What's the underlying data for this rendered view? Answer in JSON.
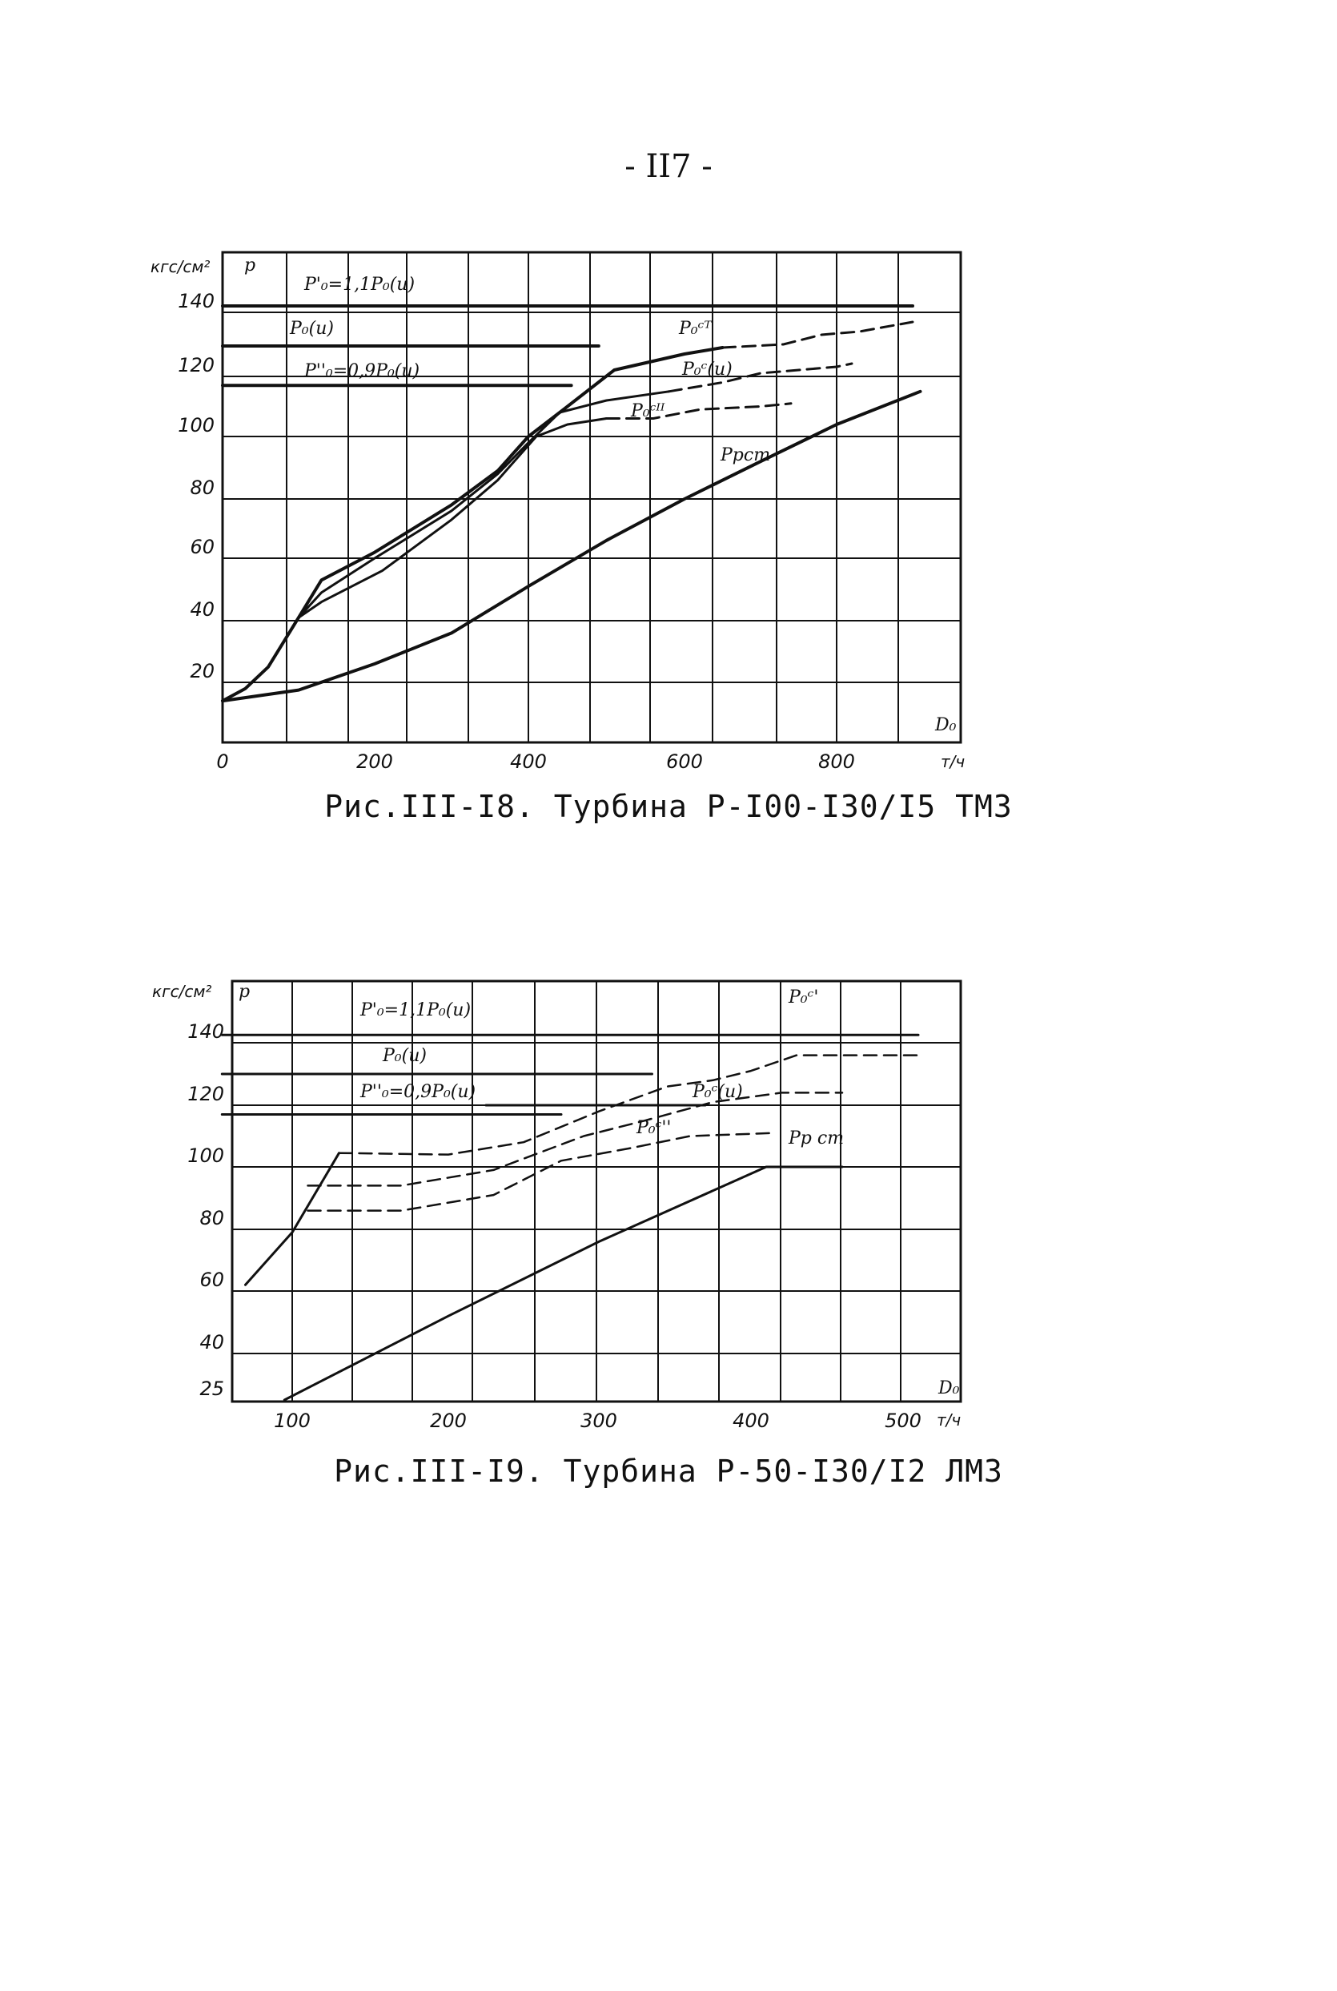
{
  "page_number": "- II7 -",
  "chart_data": [
    {
      "id": "fig1",
      "type": "line",
      "caption": "Рис.III-I8. Турбина Р-I00-I30/I5 ТМЗ",
      "ylabel": "p",
      "yunit": "кгс/см²",
      "xlabel": "D₀",
      "xunit": "т/ч",
      "xlim": [
        0,
        940
      ],
      "ylim": [
        0,
        160
      ],
      "xticks": [
        0,
        200,
        400,
        600,
        800
      ],
      "yticks": [
        20,
        40,
        60,
        80,
        100,
        120,
        140
      ],
      "grid": true,
      "series": [
        {
          "name": "P'₀=1,1P₀(u)",
          "style": "solid",
          "points": [
            [
              0,
              142
            ],
            [
              900,
              142
            ]
          ]
        },
        {
          "name": "P₀(u)",
          "style": "solid",
          "points": [
            [
              0,
              129.5
            ],
            [
              490,
              129.5
            ]
          ]
        },
        {
          "name": "P''₀=0,9P₀(u)",
          "style": "solid",
          "points": [
            [
              0,
              117
            ],
            [
              455,
              117
            ]
          ]
        },
        {
          "name": "P₀ᶜᵀ",
          "style": "solid",
          "points": [
            [
              0,
              14
            ],
            [
              30,
              18
            ],
            [
              60,
              25
            ],
            [
              100,
              41
            ],
            [
              130,
              53
            ],
            [
              200,
              62
            ],
            [
              300,
              78
            ],
            [
              360,
              89
            ],
            [
              400,
              100
            ],
            [
              450,
              110
            ],
            [
              510,
              122
            ],
            [
              600,
              127
            ],
            [
              650,
              129
            ]
          ]
        },
        {
          "name": "P₀ᶜᵀ",
          "style": "dashed",
          "points": [
            [
              650,
              129
            ],
            [
              730,
              130
            ],
            [
              780,
              133
            ],
            [
              830,
              134
            ],
            [
              900,
              137
            ]
          ]
        },
        {
          "name": "P₀ᶜ(u)",
          "style": "solid",
          "points": [
            [
              100,
              41
            ],
            [
              130,
              49
            ],
            [
              200,
              60
            ],
            [
              300,
              76
            ],
            [
              360,
              88
            ],
            [
              400,
              98
            ],
            [
              440,
              108
            ],
            [
              500,
              112
            ],
            [
              580,
              115
            ]
          ]
        },
        {
          "name": "P₀ᶜ(u)",
          "style": "dashed",
          "points": [
            [
              580,
              115
            ],
            [
              650,
              118
            ],
            [
              700,
              121
            ],
            [
              800,
              123
            ],
            [
              820,
              124
            ]
          ]
        },
        {
          "name": "P₀ᶜᴵᴵ",
          "style": "solid",
          "points": [
            [
              100,
              41
            ],
            [
              130,
              46
            ],
            [
              210,
              56
            ],
            [
              300,
              73
            ],
            [
              360,
              86
            ],
            [
              410,
              100
            ],
            [
              450,
              104
            ],
            [
              500,
              106
            ]
          ]
        },
        {
          "name": "P₀ᶜᴵᴵ",
          "style": "dashed",
          "points": [
            [
              500,
              106
            ],
            [
              560,
              106
            ],
            [
              620,
              109
            ],
            [
              700,
              110
            ],
            [
              740,
              111
            ]
          ]
        },
        {
          "name": "Pрст",
          "style": "solid",
          "points": [
            [
              0,
              14
            ],
            [
              100,
              17.5
            ],
            [
              200,
              26
            ],
            [
              300,
              36
            ],
            [
              400,
              51
            ],
            [
              500,
              66
            ],
            [
              600,
              80
            ],
            [
              700,
              92
            ],
            [
              800,
              104
            ],
            [
              910,
              115
            ]
          ]
        }
      ],
      "annotations": [
        "P'₀=1,1P₀(u)",
        "P₀(u)",
        "P''₀=0,9P₀(u)",
        "P₀ᶜᵀ",
        "P₀ᶜ(u)",
        "P₀ᶜᴵᴵ",
        "Pрст"
      ]
    },
    {
      "id": "fig2",
      "type": "line",
      "caption": "Рис.III-I9. Турбина Р-50-I30/I2 ЛМЗ",
      "ylabel": "p",
      "yunit": "кгс/см²",
      "xlabel": "D₀",
      "xunit": "т/ч",
      "xlim": [
        55,
        550
      ],
      "ylim": [
        25,
        160
      ],
      "xticks": [
        100,
        200,
        300,
        400,
        500
      ],
      "yticks": [
        25,
        40,
        60,
        80,
        100,
        120,
        140
      ],
      "grid": true,
      "series": [
        {
          "name": "P'₀=1,1P₀(u)",
          "style": "solid",
          "points": [
            [
              55,
              142.5
            ],
            [
              510,
              142.5
            ]
          ]
        },
        {
          "name": "P₀(u)",
          "style": "solid",
          "points": [
            [
              55,
              130
            ],
            [
              335,
              130
            ]
          ]
        },
        {
          "name": "P''₀=0,9P₀(u)",
          "style": "solid",
          "points": [
            [
              55,
              117
            ],
            [
              275,
              117
            ]
          ]
        },
        {
          "name": "P₀(u) cont.",
          "style": "solid",
          "points": [
            [
              225,
              120
            ],
            [
              370,
              120
            ]
          ]
        },
        {
          "name": "P₀ᶜᵀ",
          "style": "solid",
          "points": [
            [
              70,
              62
            ],
            [
              100,
              79
            ],
            [
              130,
              104.5
            ]
          ]
        },
        {
          "name": "P₀ᶜᵀ",
          "style": "dashed",
          "points": [
            [
              130,
              104.5
            ],
            [
              200,
              104
            ],
            [
              250,
              108
            ],
            [
              300,
              118
            ],
            [
              345,
              126
            ],
            [
              375,
              128
            ],
            [
              400,
              131
            ],
            [
              430,
              136
            ],
            [
              460,
              136
            ],
            [
              510,
              136
            ]
          ]
        },
        {
          "name": "P₀ᶜ(u)",
          "style": "dashed",
          "points": [
            [
              110,
              94
            ],
            [
              170,
              94
            ],
            [
              230,
              99
            ],
            [
              290,
              110
            ],
            [
              330,
              115
            ],
            [
              375,
              121
            ],
            [
              420,
              124
            ],
            [
              460,
              124
            ]
          ]
        },
        {
          "name": "P₀ᶜᴵᴵ",
          "style": "dashed",
          "points": [
            [
              110,
              86
            ],
            [
              170,
              86
            ],
            [
              230,
              91
            ],
            [
              275,
              102
            ],
            [
              320,
              106
            ],
            [
              360,
              110
            ],
            [
              415,
              111
            ]
          ]
        },
        {
          "name": "Pрст",
          "style": "solid",
          "points": [
            [
              95,
              25
            ],
            [
              200,
              52
            ],
            [
              300,
              76
            ],
            [
              410,
              100
            ],
            [
              460,
              100
            ]
          ]
        }
      ],
      "annotations": [
        "P'₀=1,1P₀(u)",
        "P₀(u)",
        "P''₀=0,9P₀(u)",
        "P₀ᶜ'",
        "P₀ᶜ(u)",
        "P₀ᶜ''",
        "Pр ст"
      ]
    }
  ]
}
